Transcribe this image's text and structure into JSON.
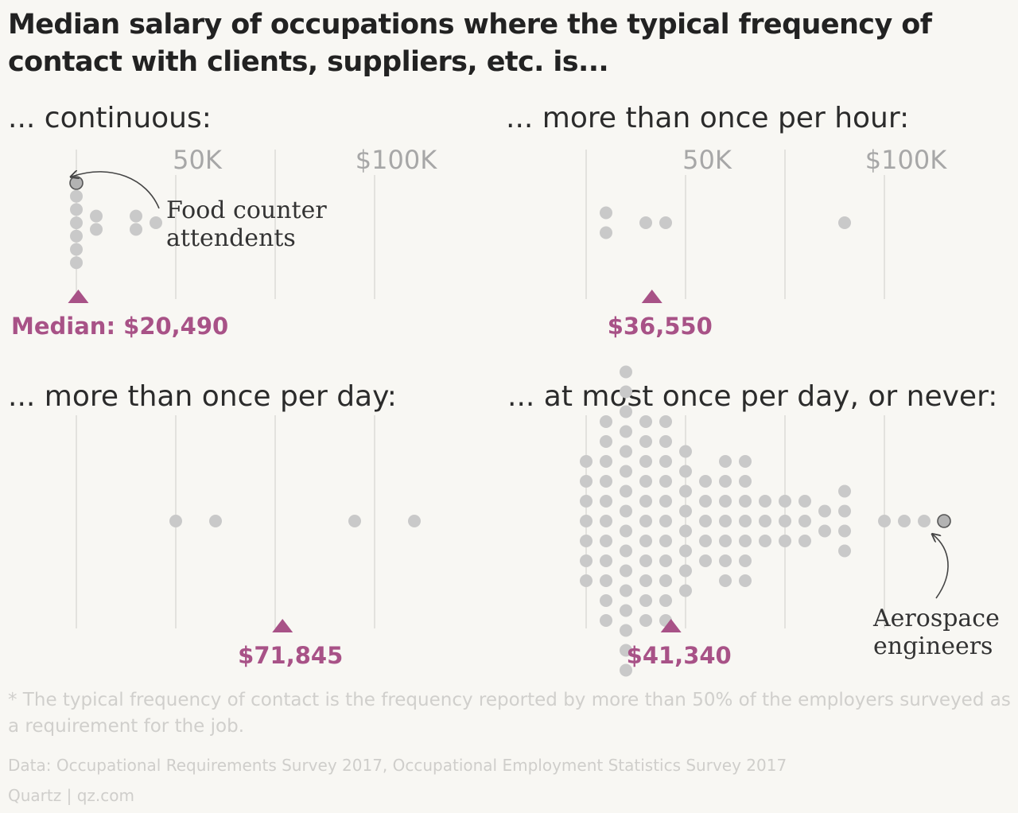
{
  "title": "Median salary of occupations where the typical frequency of contact with clients, suppliers, etc. is...",
  "footnote": "* The typical frequency of contact is the frequency reported by more than 50% of the employers surveyed as a requirement for the job.",
  "source": "Data: Occupational Requirements Survey 2017, Occupational Employment Statistics Survey 2017",
  "credit": "Quartz | qz.com",
  "colors": {
    "dot": "#c9c9c9",
    "highlight_dot": "#b3b3b3",
    "median": "#a85287",
    "gridline": "#e3e2de",
    "tick_label": "#a7a7a7"
  },
  "chart_data": [
    {
      "type": "scatter",
      "subtype": "beeswarm",
      "title": "... continuous:",
      "x_ticks": [
        "50K",
        "$100K"
      ],
      "x_tick_values": [
        50000,
        100000
      ],
      "median": 20490,
      "median_label": "Median: $20,490",
      "points_x": [
        20000,
        20000,
        20000,
        20000,
        20000,
        20000,
        20000,
        25000,
        25000,
        35000,
        35000,
        40000
      ],
      "highlight": {
        "x": 20000,
        "label": "Food counter attendents"
      }
    },
    {
      "type": "scatter",
      "subtype": "beeswarm",
      "title": "... more than once per hour:",
      "x_ticks": [
        "50K",
        "$100K"
      ],
      "x_tick_values": [
        50000,
        100000
      ],
      "median": 36550,
      "median_label": "$36,550",
      "points_x": [
        25000,
        25000,
        35000,
        40000,
        85000
      ]
    },
    {
      "type": "scatter",
      "subtype": "beeswarm",
      "title": "... more than once per day:",
      "median": 71845,
      "median_label": "$71,845",
      "points_x": [
        45000,
        55000,
        90000,
        105000
      ]
    },
    {
      "type": "scatter",
      "subtype": "beeswarm",
      "title": "... at most once per day, or never:",
      "median": 41340,
      "median_label": "$41,340",
      "bins": [
        {
          "x": 20000,
          "count": 7
        },
        {
          "x": 25000,
          "count": 11
        },
        {
          "x": 30000,
          "count": 16
        },
        {
          "x": 35000,
          "count": 11
        },
        {
          "x": 40000,
          "count": 11
        },
        {
          "x": 45000,
          "count": 8
        },
        {
          "x": 50000,
          "count": 5
        },
        {
          "x": 55000,
          "count": 7
        },
        {
          "x": 60000,
          "count": 7
        },
        {
          "x": 65000,
          "count": 3
        },
        {
          "x": 70000,
          "count": 3
        },
        {
          "x": 75000,
          "count": 3
        },
        {
          "x": 80000,
          "count": 2
        },
        {
          "x": 85000,
          "count": 4
        },
        {
          "x": 95000,
          "count": 1
        },
        {
          "x": 100000,
          "count": 1
        },
        {
          "x": 105000,
          "count": 1
        },
        {
          "x": 110000,
          "count": 1
        }
      ],
      "highlight": {
        "x": 110000,
        "label": "Aerospace engineers"
      }
    }
  ]
}
